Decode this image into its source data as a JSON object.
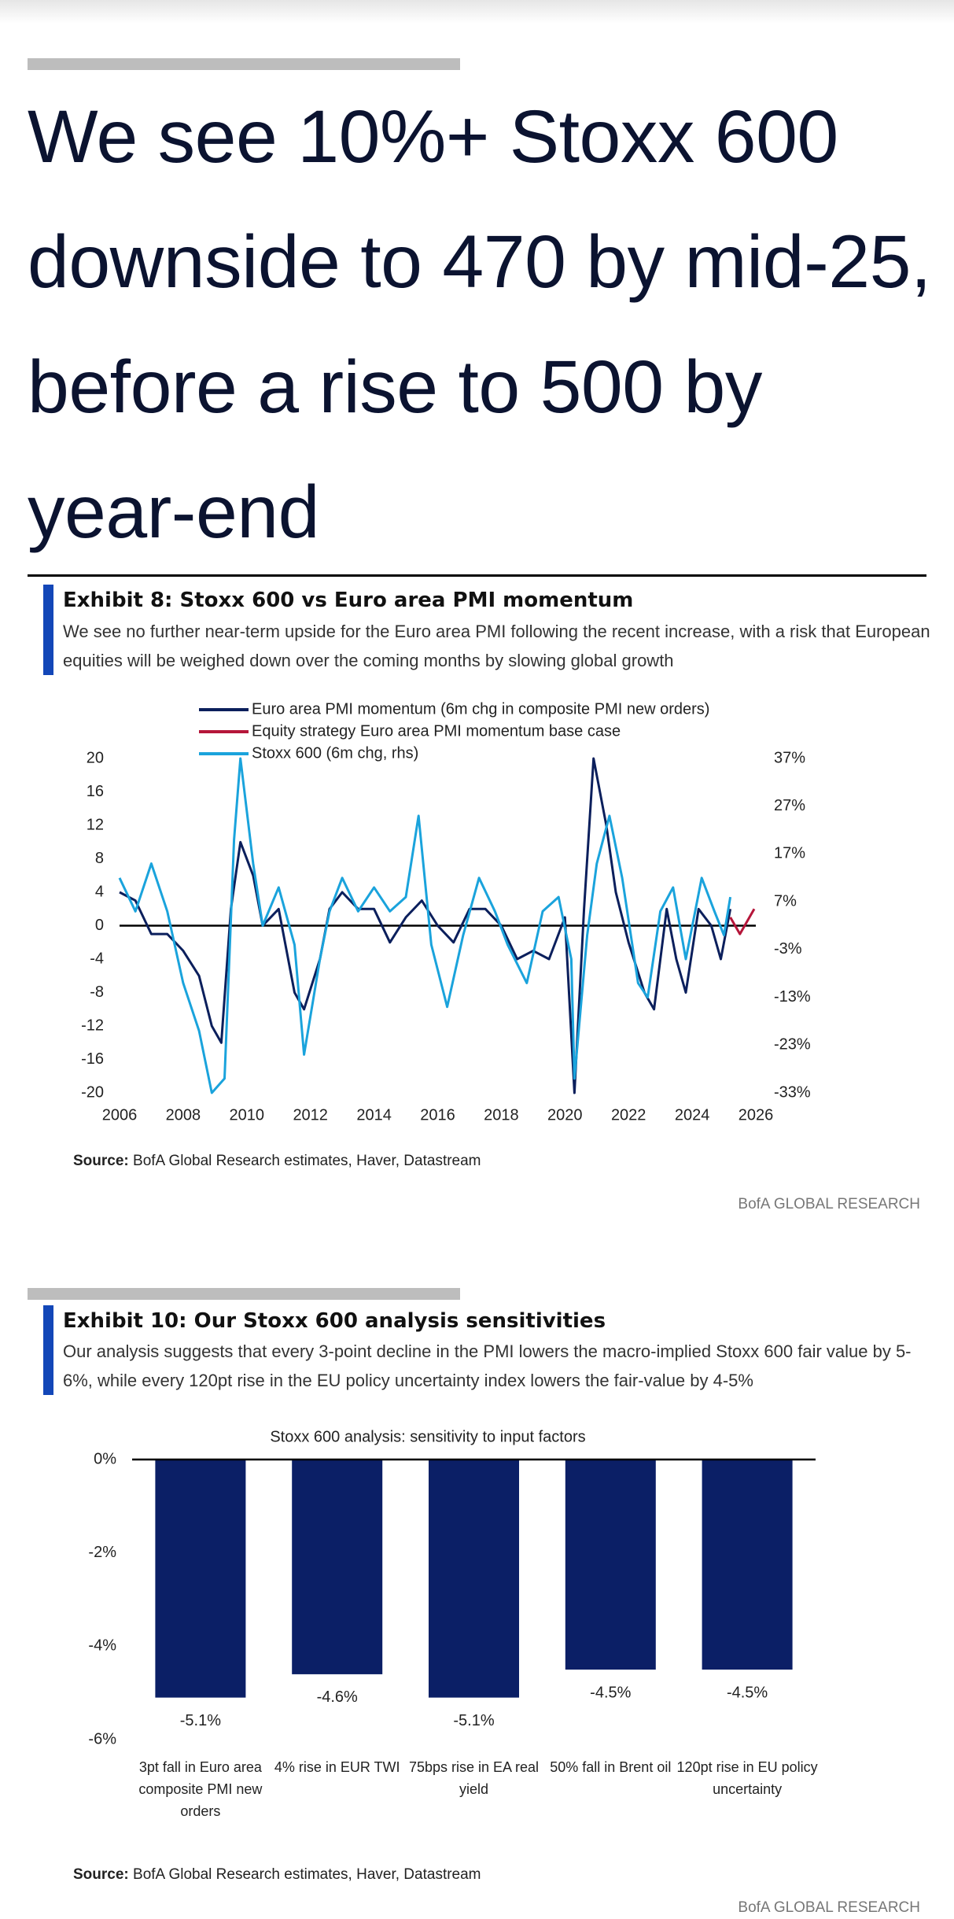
{
  "header": {
    "title": "We see 10%+ Stoxx 600 downside to 470 by mid-25, before a rise to 500 by year-end"
  },
  "exhibits": [
    {
      "title": "Exhibit 8: Stoxx 600 vs Euro area PMI momentum",
      "subtitle": "We see no further near-term upside for the Euro area PMI following the recent increase, with a risk that European equities will be weighed down over the coming months by slowing global growth",
      "source_label": "Source:",
      "source": "BofA Global Research estimates, Haver, Datastream",
      "brand": "BofA GLOBAL RESEARCH"
    },
    {
      "title": "Exhibit 10: Our Stoxx 600 analysis sensitivities",
      "subtitle": "Our analysis suggests that every 3-point decline in the PMI lowers the macro-implied Stoxx 600 fair value by 5-6%, while every 120pt rise in the EU policy uncertainty index lowers the fair-value by 4-5%",
      "source_label": "Source:",
      "source": "BofA Global Research estimates, Haver, Datastream",
      "brand": "BofA GLOBAL RESEARCH"
    }
  ],
  "chart_data": [
    {
      "type": "line",
      "xlim": [
        2006,
        2026
      ],
      "xticks": [
        2006,
        2008,
        2010,
        2012,
        2014,
        2016,
        2018,
        2020,
        2022,
        2024,
        2026
      ],
      "ylim": [
        -20,
        20
      ],
      "yticks": [
        -20,
        -16,
        -12,
        -8,
        -4,
        0,
        4,
        8,
        12,
        16,
        20
      ],
      "y2lim": [
        -33,
        37
      ],
      "y2ticks": [
        {
          "value": -33,
          "label": "-33%"
        },
        {
          "value": -23,
          "label": "-23%"
        },
        {
          "value": -13,
          "label": "-13%"
        },
        {
          "value": -3,
          "label": "-3%"
        },
        {
          "value": 7,
          "label": "7%"
        },
        {
          "value": 17,
          "label": "17%"
        },
        {
          "value": 27,
          "label": "27%"
        },
        {
          "value": 37,
          "label": "37%"
        }
      ],
      "series": [
        {
          "name": "Euro area PMI momentum (6m chg in composite PMI new orders)",
          "color": "#0b1f5c",
          "x": [
            2006,
            2006.5,
            2007,
            2007.5,
            2008,
            2008.5,
            2008.9,
            2009.2,
            2009.5,
            2009.8,
            2010.2,
            2010.5,
            2011,
            2011.5,
            2011.8,
            2012.3,
            2012.6,
            2013,
            2013.5,
            2014,
            2014.5,
            2015,
            2015.5,
            2016,
            2016.5,
            2017,
            2017.5,
            2018,
            2018.5,
            2019,
            2019.5,
            2020,
            2020.3,
            2020.6,
            2020.9,
            2021.3,
            2021.6,
            2022,
            2022.5,
            2022.8,
            2023.2,
            2023.5,
            2023.8,
            2024.2,
            2024.6,
            2024.9,
            2025.2
          ],
          "values": [
            4,
            3,
            -1,
            -1,
            -3,
            -6,
            -12,
            -14,
            2,
            10,
            6,
            0,
            2,
            -8,
            -10,
            -4,
            2,
            4,
            2,
            2,
            -2,
            1,
            3,
            0,
            -2,
            2,
            2,
            0,
            -4,
            -3,
            -4,
            1,
            -20,
            2,
            20,
            12,
            4,
            -2,
            -8,
            -10,
            2,
            -4,
            -8,
            2,
            0,
            -4,
            2
          ]
        },
        {
          "name": "Equity strategy Euro area PMI momentum base case",
          "color": "#b5163a",
          "x": [
            2025.2,
            2025.5,
            2025.8,
            2025.95
          ],
          "values": [
            1,
            -1,
            1,
            2
          ]
        },
        {
          "name": "Stoxx 600 (6m chg, rhs)",
          "color": "#1aa3dc",
          "axis": "y2",
          "x": [
            2006,
            2006.5,
            2007,
            2007.5,
            2008,
            2008.5,
            2008.9,
            2009.3,
            2009.6,
            2009.8,
            2010.2,
            2010.5,
            2011,
            2011.5,
            2011.8,
            2012.3,
            2012.6,
            2013,
            2013.5,
            2014,
            2014.5,
            2015,
            2015.4,
            2015.8,
            2016.3,
            2016.8,
            2017.3,
            2017.8,
            2018.2,
            2018.8,
            2019.3,
            2019.8,
            2020.2,
            2020.3,
            2020.7,
            2021,
            2021.4,
            2021.8,
            2022.3,
            2022.6,
            2023,
            2023.4,
            2023.8,
            2024.3,
            2024.7,
            2025,
            2025.2
          ],
          "values": [
            12,
            5,
            15,
            5,
            -10,
            -20,
            -33,
            -30,
            20,
            37,
            15,
            2,
            10,
            -2,
            -25,
            -5,
            5,
            12,
            5,
            10,
            5,
            8,
            25,
            -2,
            -15,
            0,
            12,
            5,
            -2,
            -10,
            5,
            8,
            -5,
            -30,
            0,
            15,
            25,
            12,
            -10,
            -13,
            5,
            10,
            -5,
            12,
            5,
            0,
            8
          ]
        }
      ]
    },
    {
      "type": "bar",
      "title": "Stoxx 600 analysis: sensitivity to input factors",
      "categories": [
        "3pt fall in Euro area composite PMI new orders",
        "4% rise in EUR TWI",
        "75bps rise in EA real yield",
        "50% fall in Brent oil",
        "120pt rise in EU policy uncertainty"
      ],
      "values": [
        -5.1,
        -4.6,
        -5.1,
        -4.5,
        -4.5
      ],
      "value_labels": [
        "-5.1%",
        "-4.6%",
        "-5.1%",
        "-4.5%",
        "-4.5%"
      ],
      "color": "#0b1f66",
      "ylim": [
        -6,
        0
      ],
      "yticks": [
        {
          "value": -6,
          "label": "-6%"
        },
        {
          "value": -4,
          "label": "-4%"
        },
        {
          "value": -2,
          "label": "-2%"
        },
        {
          "value": 0,
          "label": "0%"
        }
      ]
    }
  ]
}
